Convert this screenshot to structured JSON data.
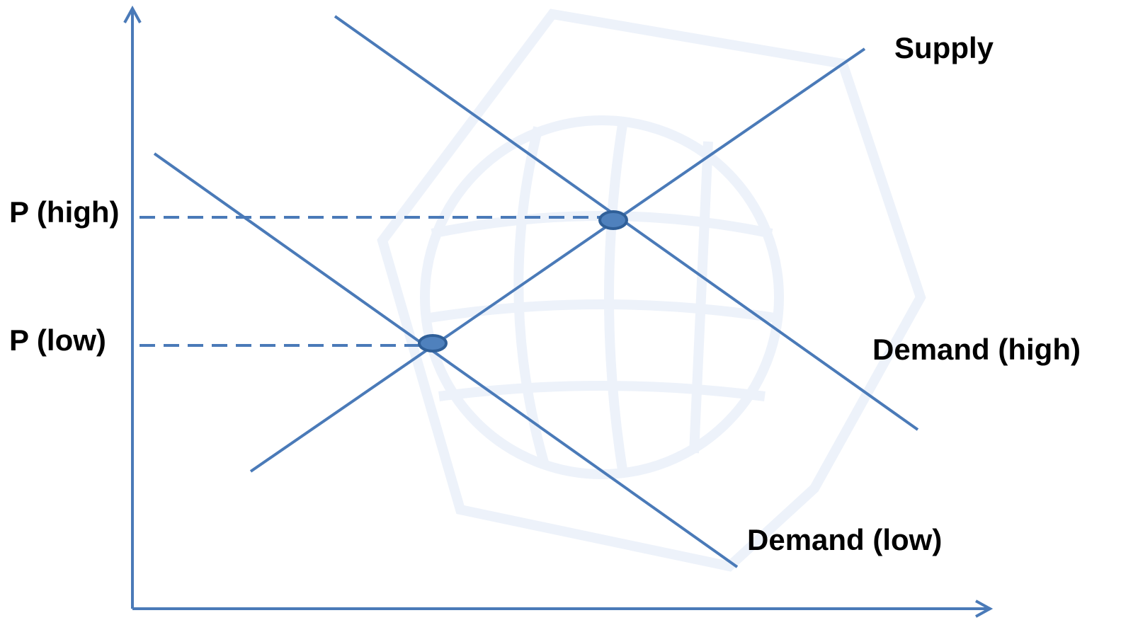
{
  "curves": [
    {
      "label": "Supply"
    },
    {
      "label": "Demand (high)"
    },
    {
      "label": "Demand (low)"
    }
  ],
  "price_levels": [
    {
      "label": "P (high)"
    },
    {
      "label": "P (low)"
    }
  ]
}
